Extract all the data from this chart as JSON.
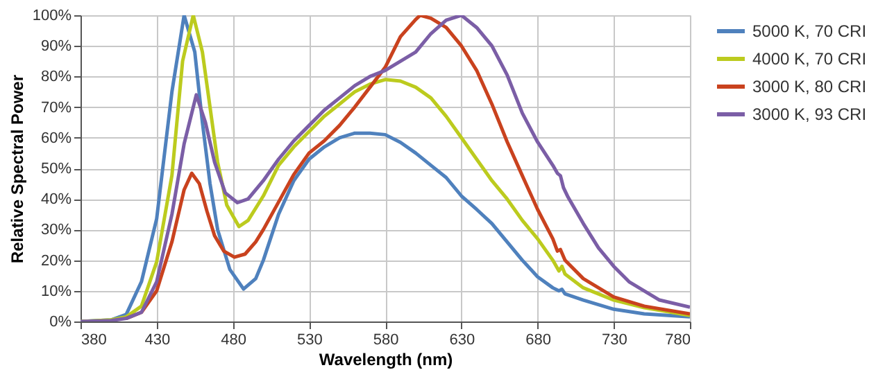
{
  "chart_data": {
    "type": "line",
    "xlabel": "Wavelength (nm)",
    "ylabel": "Relative Spectral Power",
    "xlim": [
      380,
      780
    ],
    "xticks": [
      380,
      430,
      480,
      530,
      580,
      630,
      680,
      730,
      780
    ],
    "ylim": [
      0,
      100
    ],
    "yticks": [
      {
        "value": 0,
        "label": "0%"
      },
      {
        "value": 10,
        "label": "10%"
      },
      {
        "value": 20,
        "label": "20%"
      },
      {
        "value": 30,
        "label": "30%"
      },
      {
        "value": 40,
        "label": "40%"
      },
      {
        "value": 50,
        "label": "50%"
      },
      {
        "value": 60,
        "label": "60%"
      },
      {
        "value": 70,
        "label": "70%"
      },
      {
        "value": 80,
        "label": "80%"
      },
      {
        "value": 90,
        "label": "90%"
      },
      {
        "value": 100,
        "label": "100%"
      }
    ],
    "grid": true,
    "legend": "right",
    "marker": "none",
    "line_style": "solid",
    "series": [
      {
        "name": "5000 K, 70 CRI",
        "color": "#4f81bd",
        "x": [
          380,
          400,
          410,
          420,
          430,
          440,
          448,
          455,
          460,
          465,
          470,
          478,
          487,
          495,
          500,
          510,
          520,
          530,
          540,
          550,
          560,
          570,
          580,
          590,
          600,
          610,
          620,
          630,
          640,
          650,
          660,
          670,
          680,
          690,
          694,
          696,
          698,
          710,
          730,
          750,
          780
        ],
        "values": [
          0,
          0.5,
          2.3,
          13,
          33.6,
          75,
          100,
          88,
          65,
          45,
          30,
          17,
          10.6,
          14,
          20,
          35,
          46,
          53,
          57,
          60,
          61.5,
          61.5,
          61,
          58.5,
          55,
          51,
          47,
          41,
          36.6,
          32,
          26,
          20,
          14.6,
          11,
          10,
          10.5,
          9,
          7,
          4,
          2.5,
          1.5
        ]
      },
      {
        "name": "4000 K, 70 CRI",
        "color": "#bccb1e",
        "x": [
          380,
          400,
          410,
          420,
          430,
          440,
          447,
          454,
          460,
          465,
          470,
          476,
          484,
          490,
          500,
          510,
          520,
          530,
          540,
          550,
          560,
          570,
          580,
          590,
          600,
          610,
          620,
          630,
          640,
          650,
          660,
          670,
          680,
          690,
          694,
          696,
          698,
          710,
          730,
          750,
          780
        ],
        "values": [
          0,
          0.5,
          1.5,
          5,
          19.5,
          47.7,
          85,
          100,
          88,
          70,
          52,
          38,
          31,
          33,
          41,
          51,
          57,
          62,
          67,
          71,
          75,
          77.5,
          79,
          78.5,
          76.5,
          73,
          67,
          60,
          53,
          46,
          40,
          33,
          27,
          20,
          16.5,
          18,
          15.5,
          11,
          7,
          4.5,
          2
        ]
      },
      {
        "name": "3000 K, 80 CRI",
        "color": "#c9421e",
        "x": [
          410,
          420,
          430,
          440,
          448,
          453,
          458,
          463,
          468,
          474,
          481,
          488,
          495,
          500,
          510,
          520,
          530,
          540,
          550,
          560,
          570,
          580,
          590,
          600,
          603,
          610,
          620,
          630,
          640,
          650,
          660,
          670,
          680,
          690,
          693,
          695,
          698,
          710,
          730,
          750,
          780
        ],
        "values": [
          1,
          3,
          10,
          26,
          43,
          48.4,
          45,
          36,
          28,
          23,
          21,
          22,
          26,
          30,
          39,
          48,
          55,
          59,
          64,
          70,
          76.5,
          83,
          93,
          98.6,
          100,
          99,
          96,
          90,
          82,
          71,
          58.7,
          47.6,
          36.6,
          27,
          23,
          23.5,
          20,
          14,
          8,
          5,
          2.5
        ]
      },
      {
        "name": "3000 K, 93 CRI",
        "color": "#7b5ea6",
        "x": [
          380,
          400,
          410,
          420,
          430,
          440,
          448,
          456,
          462,
          468,
          475,
          483,
          490,
          500,
          510,
          520,
          530,
          540,
          550,
          560,
          570,
          580,
          590,
          600,
          610,
          620,
          630,
          640,
          650,
          660,
          670,
          680,
          690,
          693,
          695,
          697,
          700,
          710,
          720,
          730,
          740,
          760,
          780
        ],
        "values": [
          0,
          0.3,
          1,
          3,
          13,
          35,
          58,
          74,
          65,
          52,
          42,
          38.8,
          40,
          46,
          53,
          59,
          64,
          69,
          73,
          77,
          80,
          82,
          85,
          88,
          94,
          98.4,
          100,
          96,
          90,
          80.5,
          68,
          58.6,
          51,
          48.4,
          47.6,
          43.7,
          40.6,
          32,
          24,
          18,
          13,
          7,
          4.7
        ]
      }
    ]
  }
}
